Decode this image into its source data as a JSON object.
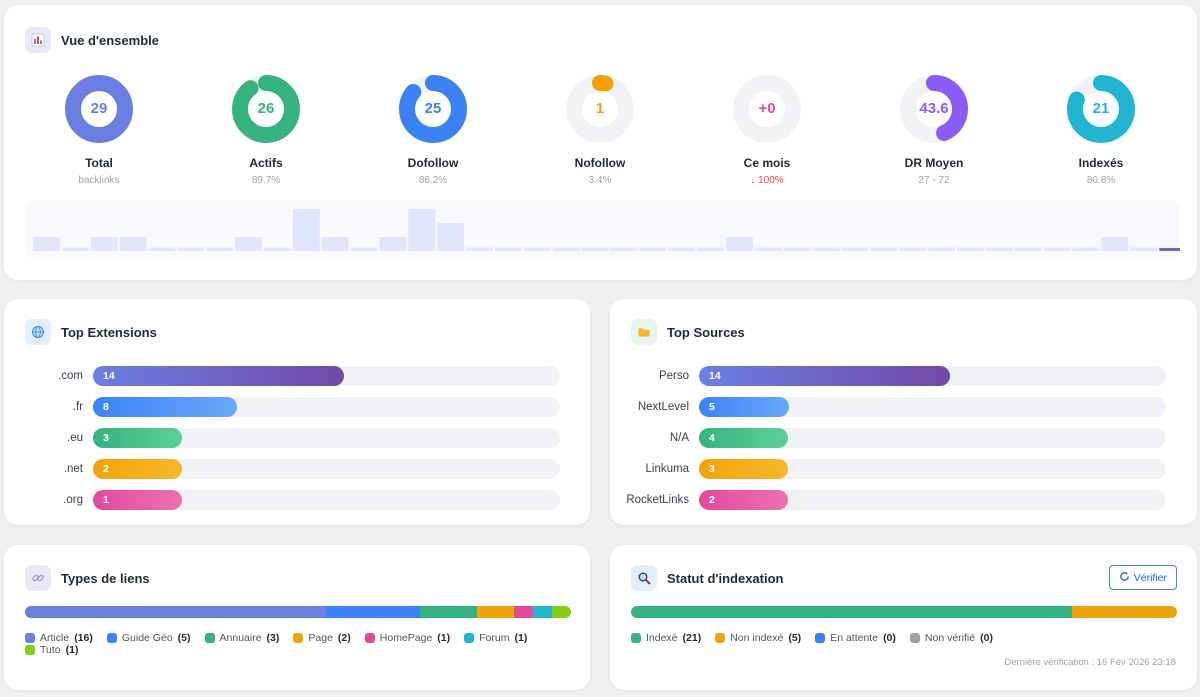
{
  "overview": {
    "title": "Vue d'ensemble",
    "stats": [
      {
        "value": "29",
        "label": "Total",
        "sub": "backlinks",
        "color": "#6b7fe3",
        "fraction": 1.0,
        "sub_color": "#9ca3af"
      },
      {
        "value": "26",
        "label": "Actifs",
        "sub": "89.7%",
        "color": "#36b37e",
        "fraction": 0.897,
        "sub_color": "#9ca3af"
      },
      {
        "value": "25",
        "label": "Dofollow",
        "sub": "86.2%",
        "color": "#3b82f6",
        "fraction": 0.862,
        "sub_color": "#9ca3af"
      },
      {
        "value": "1",
        "label": "Nofollow",
        "sub": "3.4%",
        "color": "#f59e0b",
        "fraction": 0.034,
        "sub_color": "#9ca3af"
      },
      {
        "value": "+0",
        "label": "Ce mois",
        "sub": "↓ 100%",
        "color": "#ec4899",
        "fraction": 0,
        "sub_color": "#ef4444"
      },
      {
        "value": "43.6",
        "label": "DR Moyen",
        "sub": "27 - 72",
        "color": "#8b5cf6",
        "fraction": 0.436,
        "sub_color": "#9ca3af"
      },
      {
        "value": "21",
        "label": "Indexés",
        "sub": "80.8%",
        "color": "#22b5cf",
        "fraction": 0.808,
        "sub_color": "#9ca3af"
      }
    ],
    "sparkline": [
      2,
      0.5,
      2,
      2,
      0.5,
      0.5,
      0.5,
      2,
      0.5,
      6,
      2,
      0.5,
      2,
      6,
      4,
      0.5,
      0.5,
      0.5,
      0.5,
      0.5,
      0.5,
      0.5,
      0.5,
      0.5,
      2,
      0.5,
      0.5,
      0.5,
      0.5,
      0.5,
      0.5,
      0.5,
      0.5,
      0.5,
      0.5,
      0.5,
      0.5,
      2,
      0.5
    ]
  },
  "extensions": {
    "title": "Top Extensions",
    "max": 26,
    "items": [
      {
        "label": ".com",
        "value": 14,
        "gradient": [
          "#6b7fe3",
          "#7249a6"
        ]
      },
      {
        "label": ".fr",
        "value": 8,
        "gradient": [
          "#3b82f6",
          "#68a9f7"
        ]
      },
      {
        "label": ".eu",
        "value": 3,
        "gradient": [
          "#36b37e",
          "#5ccf98"
        ]
      },
      {
        "label": ".net",
        "value": 2,
        "gradient": [
          "#f0a30a",
          "#f6b82a"
        ]
      },
      {
        "label": ".org",
        "value": 1,
        "gradient": [
          "#e4489b",
          "#ec72b0"
        ]
      }
    ]
  },
  "sources": {
    "title": "Top Sources",
    "max": 26,
    "items": [
      {
        "label": "Perso",
        "value": 14,
        "gradient": [
          "#6b7fe3",
          "#7249a6"
        ]
      },
      {
        "label": "NextLevel",
        "value": 5,
        "gradient": [
          "#3b82f6",
          "#68a9f7"
        ]
      },
      {
        "label": "N/A",
        "value": 4,
        "gradient": [
          "#36b37e",
          "#5ccf98"
        ]
      },
      {
        "label": "Linkuma",
        "value": 3,
        "gradient": [
          "#f0a30a",
          "#f6b82a"
        ]
      },
      {
        "label": "RocketLinks",
        "value": 2,
        "gradient": [
          "#e4489b",
          "#ec72b0"
        ]
      }
    ]
  },
  "link_types": {
    "title": "Types de liens",
    "items": [
      {
        "label": "Article",
        "count": "(16)",
        "value": 16,
        "color": "#6b7fe3"
      },
      {
        "label": "Guide Géo",
        "count": "(5)",
        "value": 5,
        "color": "#3b82f6"
      },
      {
        "label": "Annuaire",
        "count": "(3)",
        "value": 3,
        "color": "#36b37e"
      },
      {
        "label": "Page",
        "count": "(2)",
        "value": 2,
        "color": "#f0a30a"
      },
      {
        "label": "HomePage",
        "count": "(1)",
        "value": 1,
        "color": "#e4489b"
      },
      {
        "label": "Forum",
        "count": "(1)",
        "value": 1,
        "color": "#22b5cf"
      },
      {
        "label": "Tuto",
        "count": "(1)",
        "value": 1,
        "color": "#84cc16"
      }
    ]
  },
  "indexation": {
    "title": "Statut d'indexation",
    "verify_label": "Vérifier",
    "last_check": "Dernière vérification : 16 Fév 2026 23:18",
    "items": [
      {
        "label": "Indexé",
        "count": "(21)",
        "value": 21,
        "color": "#36b37e"
      },
      {
        "label": "Non indexé",
        "count": "(5)",
        "value": 5,
        "color": "#f0a30a"
      },
      {
        "label": "En attente",
        "count": "(0)",
        "value": 0,
        "color": "#3b82f6"
      },
      {
        "label": "Non vérifié",
        "count": "(0)",
        "value": 0,
        "color": "#9ca3af"
      }
    ]
  }
}
